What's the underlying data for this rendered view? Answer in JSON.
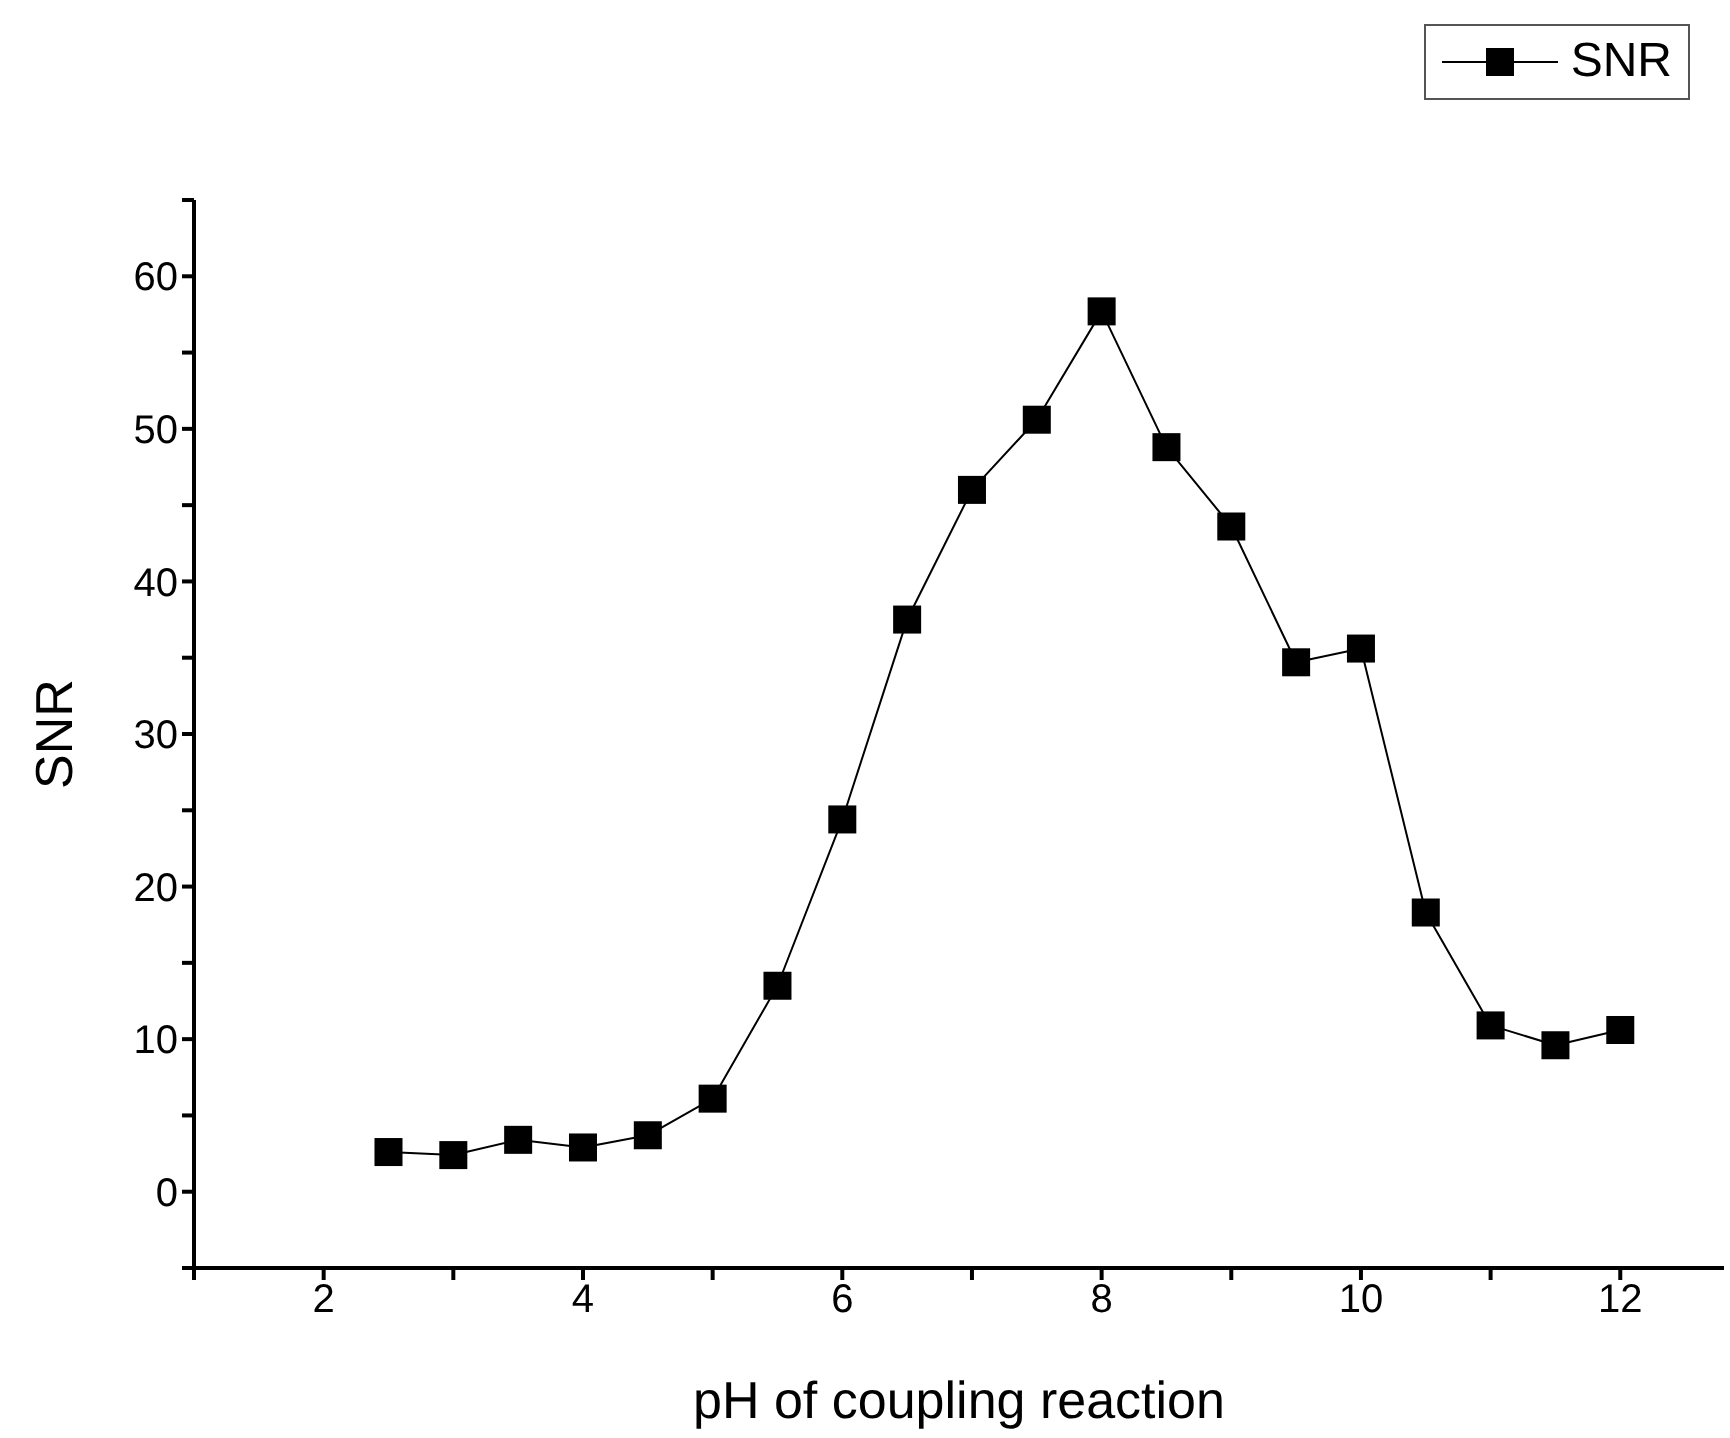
{
  "chart_data": {
    "type": "line",
    "xlabel": "pH of coupling reaction",
    "ylabel": "SNR",
    "x": [
      2.5,
      3,
      3.5,
      4,
      4.5,
      5,
      5.5,
      6,
      6.5,
      7,
      7.5,
      8,
      8.5,
      9,
      9.5,
      10,
      10.5,
      11,
      11.5,
      12
    ],
    "series": [
      {
        "name": "SNR",
        "color": "#000000",
        "values": [
          2.6,
          2.4,
          3.4,
          2.9,
          3.7,
          6.1,
          13.5,
          24.4,
          37.5,
          46,
          50.6,
          57.7,
          48.8,
          43.6,
          34.7,
          35.6,
          18.3,
          10.9,
          9.6,
          10.6
        ]
      }
    ],
    "xlim": [
      1,
      12.8
    ],
    "xticks": [
      {
        "value": 1,
        "label": null
      },
      2,
      {
        "value": 3,
        "label": null
      },
      4,
      {
        "value": 5,
        "label": null
      },
      6,
      {
        "value": 7,
        "label": null
      },
      8,
      {
        "value": 9,
        "label": null
      },
      10,
      {
        "value": 11,
        "label": null
      },
      12
    ],
    "ylim": [
      -5,
      65
    ],
    "yticks": [
      {
        "value": -5,
        "label": null
      },
      0,
      {
        "value": 5,
        "label": null
      },
      10,
      {
        "value": 15,
        "label": null
      },
      20,
      {
        "value": 25,
        "label": null
      },
      30,
      {
        "value": 35,
        "label": null
      },
      40,
      {
        "value": 45,
        "label": null
      },
      50,
      {
        "value": 55,
        "label": null
      },
      60,
      {
        "value": 65,
        "label": null
      }
    ],
    "grid": false,
    "legend": "top right",
    "marker": "square",
    "line_style": "solid"
  }
}
